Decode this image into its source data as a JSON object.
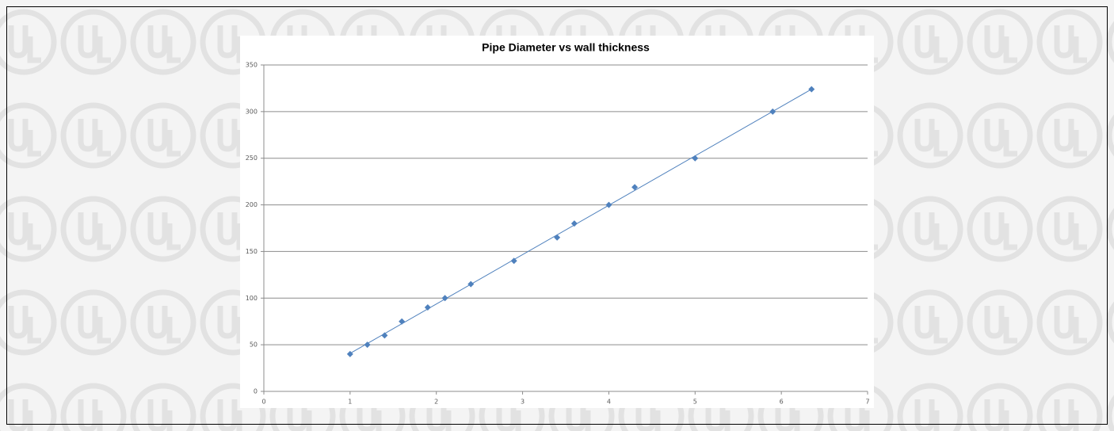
{
  "chart_data": {
    "type": "scatter",
    "title": "Pipe Diameter vs wall thickness",
    "x": [
      1,
      1.2,
      1.4,
      1.6,
      1.9,
      2.1,
      2.4,
      2.9,
      3.4,
      3.6,
      4,
      4.3,
      5,
      5.9,
      6.35
    ],
    "values": [
      40,
      50,
      60,
      75,
      90,
      100,
      115,
      140,
      165,
      180,
      200,
      219,
      250,
      300,
      324
    ],
    "color": "#4f81bd",
    "trendline": true,
    "grid": true,
    "xlim": [
      0,
      7
    ],
    "xticks": [
      0,
      1,
      2,
      3,
      4,
      5,
      6,
      7
    ],
    "ylim": [
      0,
      350
    ],
    "yticks": [
      0,
      50,
      100,
      150,
      200,
      250,
      300,
      350
    ]
  }
}
